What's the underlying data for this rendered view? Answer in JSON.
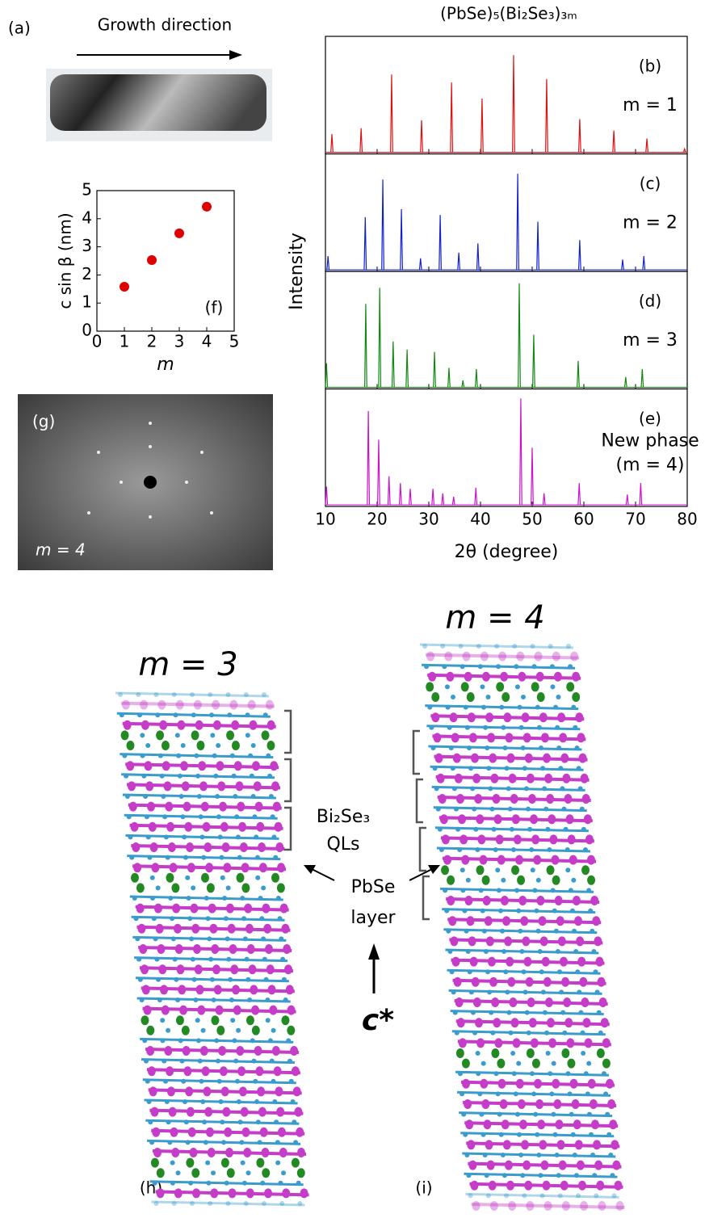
{
  "panel_a": {
    "label": "(a)",
    "caption": "Growth direction"
  },
  "panel_g": {
    "label": "(g)",
    "caption": "m = 4"
  },
  "chart_data": [
    {
      "type": "scatter",
      "label": "(f)",
      "xlabel": "m",
      "ylabel": "c sin β (nm)",
      "x": [
        1,
        2,
        3,
        4
      ],
      "values": [
        1.58,
        2.53,
        3.48,
        4.43
      ],
      "color": "#e00000",
      "xlim": [
        0,
        5
      ],
      "xticks": [
        0,
        1,
        2,
        3,
        4,
        5
      ],
      "ylim": [
        0,
        5
      ],
      "yticks": [
        0,
        1,
        2,
        3,
        4,
        5
      ]
    },
    {
      "type": "spectrum",
      "title": "(PbSe)₅(Bi₂Se₃)₃ₘ",
      "xlabel": "2θ (degree)",
      "ylabel": "Intensity",
      "xlim": [
        10,
        80
      ],
      "xticks": [
        10,
        20,
        30,
        40,
        50,
        60,
        70,
        80
      ],
      "ylim": [
        0,
        1
      ],
      "panels": [
        {
          "label": "(b)",
          "name_lines": [
            "m = 1"
          ],
          "color": "#dd1111",
          "x": [
            11.25,
            16.9,
            22.8,
            28.6,
            34.4,
            40.3,
            46.4,
            52.8,
            59.2,
            65.8,
            72.2,
            79.5
          ],
          "values": [
            0.16,
            0.21,
            0.68,
            0.28,
            0.61,
            0.47,
            0.85,
            0.64,
            0.29,
            0.19,
            0.12,
            0.03
          ]
        },
        {
          "label": "(c)",
          "name_lines": [
            "m = 2"
          ],
          "color": "#1122cc",
          "x": [
            10.5,
            17.7,
            21.1,
            24.7,
            28.4,
            32.2,
            35.8,
            39.5,
            47.2,
            51.1,
            59.2,
            67.5,
            71.6
          ],
          "values": [
            0.12,
            0.46,
            0.79,
            0.53,
            0.1,
            0.48,
            0.15,
            0.23,
            0.84,
            0.42,
            0.26,
            0.09,
            0.12
          ]
        },
        {
          "label": "(d)",
          "name_lines": [
            "m = 3"
          ],
          "color": "#118811",
          "x": [
            10.2,
            17.8,
            20.5,
            23.1,
            25.8,
            31.1,
            33.9,
            36.6,
            39.2,
            47.5,
            50.3,
            58.9,
            68.1,
            71.3
          ],
          "values": [
            0.21,
            0.73,
            0.87,
            0.4,
            0.33,
            0.31,
            0.17,
            0.06,
            0.16,
            0.91,
            0.46,
            0.23,
            0.09,
            0.16
          ]
        },
        {
          "label": "(e)",
          "name_lines": [
            "New phase",
            "(m = 4)"
          ],
          "color": "#cc11cc",
          "x": [
            10.2,
            18.3,
            20.3,
            22.3,
            24.5,
            26.4,
            30.8,
            32.7,
            34.8,
            39.1,
            47.8,
            50.0,
            52.3,
            59.1,
            68.4,
            71.0
          ],
          "values": [
            0.16,
            0.82,
            0.57,
            0.25,
            0.19,
            0.14,
            0.14,
            0.1,
            0.07,
            0.15,
            0.93,
            0.5,
            0.1,
            0.19,
            0.09,
            0.19
          ]
        }
      ]
    }
  ],
  "structures": {
    "h": {
      "label": "(h)",
      "title": "m = 3"
    },
    "i": {
      "label": "(i)",
      "title": "m = 4"
    },
    "annotations": {
      "ql_line1": "Bi₂Se₃",
      "ql_line2": "QLs",
      "pbse_line1": "PbSe",
      "pbse_line2": "layer",
      "axis": "c*"
    }
  }
}
